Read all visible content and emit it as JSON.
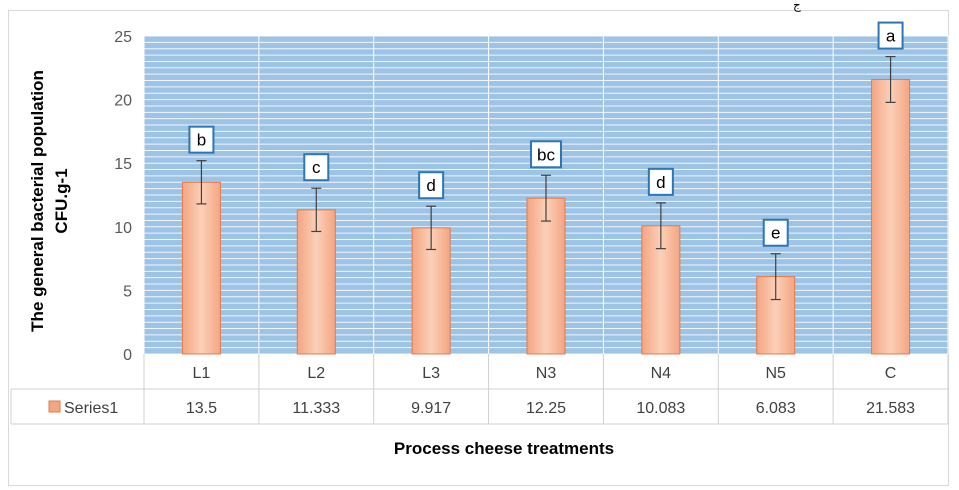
{
  "chart_data": {
    "type": "bar",
    "categories": [
      "L1",
      "L2",
      "L3",
      "N3",
      "N4",
      "N5",
      "C"
    ],
    "series": [
      {
        "name": "Series1",
        "values": [
          13.5,
          11.333,
          9.917,
          12.25,
          10.083,
          6.083,
          21.583
        ],
        "value_labels": [
          "13.5",
          "11.333",
          "9.917",
          "12.25",
          "10.083",
          "6.083",
          "21.583"
        ],
        "error": [
          1.7,
          1.7,
          1.7,
          1.8,
          1.8,
          1.8,
          1.8
        ],
        "significance": [
          "b",
          "c",
          "d",
          "bc",
          "d",
          "e",
          "a"
        ]
      }
    ],
    "ylim": [
      0,
      25
    ],
    "yticks": [
      0,
      5,
      10,
      15,
      20,
      25
    ],
    "ylabel_line1": "The general bacterial population",
    "ylabel_line2": "CFU.g-1",
    "xlabel": "Process cheese treatments",
    "data_table": true,
    "grid": true,
    "colors": {
      "plot_background": "#9dc3e6",
      "bar_fill": "#f8c1a3",
      "bar_fill_dark": "#f4a582",
      "bar_stroke": "#e07b4f",
      "gridline": "#ffffff",
      "label_box": "#2e75b6"
    }
  }
}
